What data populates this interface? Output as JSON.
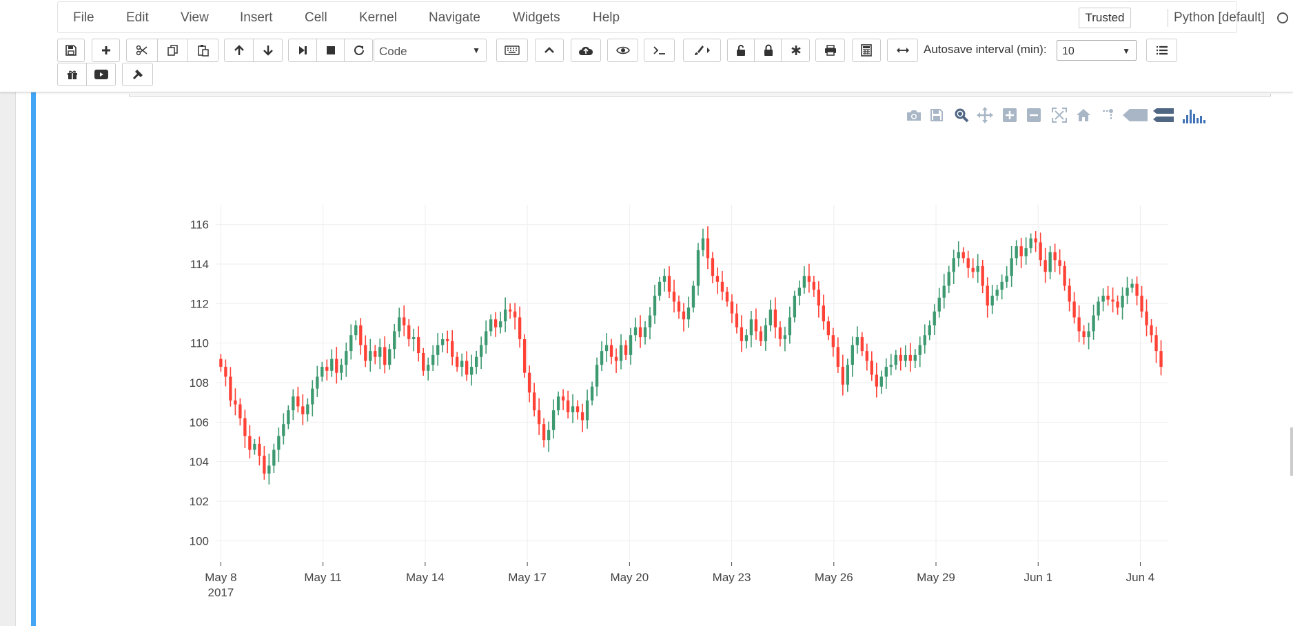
{
  "menubar": {
    "items": [
      "File",
      "Edit",
      "View",
      "Insert",
      "Cell",
      "Kernel",
      "Navigate",
      "Widgets",
      "Help"
    ],
    "trusted_label": "Trusted",
    "kernel_name": "Python [default]"
  },
  "toolbar": {
    "cell_type": "Code",
    "autosave_label": "Autosave interval (min):",
    "autosave_value": "10"
  },
  "modebar": {
    "icons": [
      "camera-icon",
      "save-icon",
      "zoom-icon",
      "pan-icon",
      "zoom-in-icon",
      "zoom-out-icon",
      "autoscale-icon",
      "reset-axes-icon",
      "spike-lines-icon",
      "hover-closest-icon",
      "hover-compare-icon",
      "plotly-logo-icon"
    ]
  },
  "chart_data": {
    "type": "candlestick",
    "title": "",
    "xlabel": "",
    "ylabel": "",
    "ylim": [
      99,
      117
    ],
    "y_ticks": [
      "100",
      "102",
      "104",
      "106",
      "108",
      "110",
      "112",
      "114",
      "116"
    ],
    "x_ticks": [
      {
        "label": "May 8",
        "sub": "2017",
        "day": 0
      },
      {
        "label": "May 11",
        "sub": "",
        "day": 3
      },
      {
        "label": "May 14",
        "sub": "",
        "day": 6
      },
      {
        "label": "May 17",
        "sub": "",
        "day": 9
      },
      {
        "label": "May 20",
        "sub": "",
        "day": 12
      },
      {
        "label": "May 23",
        "sub": "",
        "day": 15
      },
      {
        "label": "May 26",
        "sub": "",
        "day": 18
      },
      {
        "label": "May 29",
        "sub": "",
        "day": 21
      },
      {
        "label": "Jun 1",
        "sub": "",
        "day": 24
      },
      {
        "label": "Jun 4",
        "sub": "",
        "day": 27
      }
    ],
    "x_range_days": [
      -0.15,
      27.8
    ],
    "grid": true,
    "legend": "none",
    "colors": {
      "increasing": "#3d9970",
      "decreasing": "#ff4136"
    },
    "close_series": [
      108.8,
      108.3,
      107.1,
      106.9,
      106.2,
      105.3,
      104.6,
      104.9,
      104.3,
      103.4,
      103.8,
      104.6,
      105.3,
      105.9,
      106.6,
      107.3,
      106.8,
      106.4,
      106.9,
      107.7,
      108.3,
      108.8,
      108.6,
      109.2,
      108.5,
      108.9,
      109.6,
      110.4,
      110.9,
      109.9,
      109.1,
      109.6,
      109.3,
      109.8,
      108.9,
      109.7,
      110.6,
      111.3,
      110.9,
      110.2,
      110.3,
      109.5,
      108.6,
      108.9,
      109.4,
      109.9,
      110.2,
      110.1,
      109.3,
      108.8,
      109.1,
      108.4,
      108.8,
      109.3,
      109.9,
      110.6,
      111.2,
      110.8,
      111.1,
      111.7,
      111.6,
      111.3,
      110.2,
      108.5,
      107.5,
      106.6,
      105.9,
      105.1,
      105.6,
      106.6,
      107.3,
      107.1,
      106.5,
      106.8,
      106.5,
      106.1,
      107.1,
      107.8,
      108.9,
      109.6,
      109.9,
      109.3,
      109.1,
      109.9,
      109.4,
      110.4,
      110.8,
      110.3,
      110.8,
      111.4,
      112.4,
      113.1,
      113.4,
      112.6,
      112.1,
      111.6,
      111.2,
      111.8,
      112.9,
      114.7,
      115.3,
      114.3,
      113.4,
      113.1,
      112.6,
      112.1,
      111.5,
      110.8,
      110.1,
      110.4,
      111.2,
      110.6,
      110.1,
      110.9,
      111.7,
      110.8,
      110.2,
      110.4,
      111.3,
      112.4,
      112.8,
      113.4,
      113.1,
      112.7,
      111.9,
      111.1,
      110.4,
      109.8,
      108.8,
      107.9,
      108.9,
      109.9,
      110.3,
      109.6,
      109.1,
      108.4,
      107.8,
      108.3,
      108.8,
      108.9,
      109.4,
      109.1,
      109.4,
      109.1,
      109.4,
      109.9,
      110.4,
      110.9,
      111.6,
      112.3,
      112.9,
      113.6,
      114.3,
      114.6,
      114.3,
      113.8,
      113.6,
      113.9,
      112.9,
      111.9,
      112.4,
      112.7,
      113.1,
      113.4,
      114.3,
      114.9,
      114.4,
      114.8,
      115.3,
      115.1,
      114.2,
      113.6,
      114.6,
      114.2,
      113.9,
      112.9,
      112.1,
      111.3,
      110.6,
      110.3,
      110.6,
      111.4,
      112.1,
      112.4,
      112.2,
      112.1,
      111.8,
      112.4,
      112.8,
      113.0,
      112.4,
      111.6,
      110.9,
      110.4,
      109.6,
      108.8
    ]
  }
}
